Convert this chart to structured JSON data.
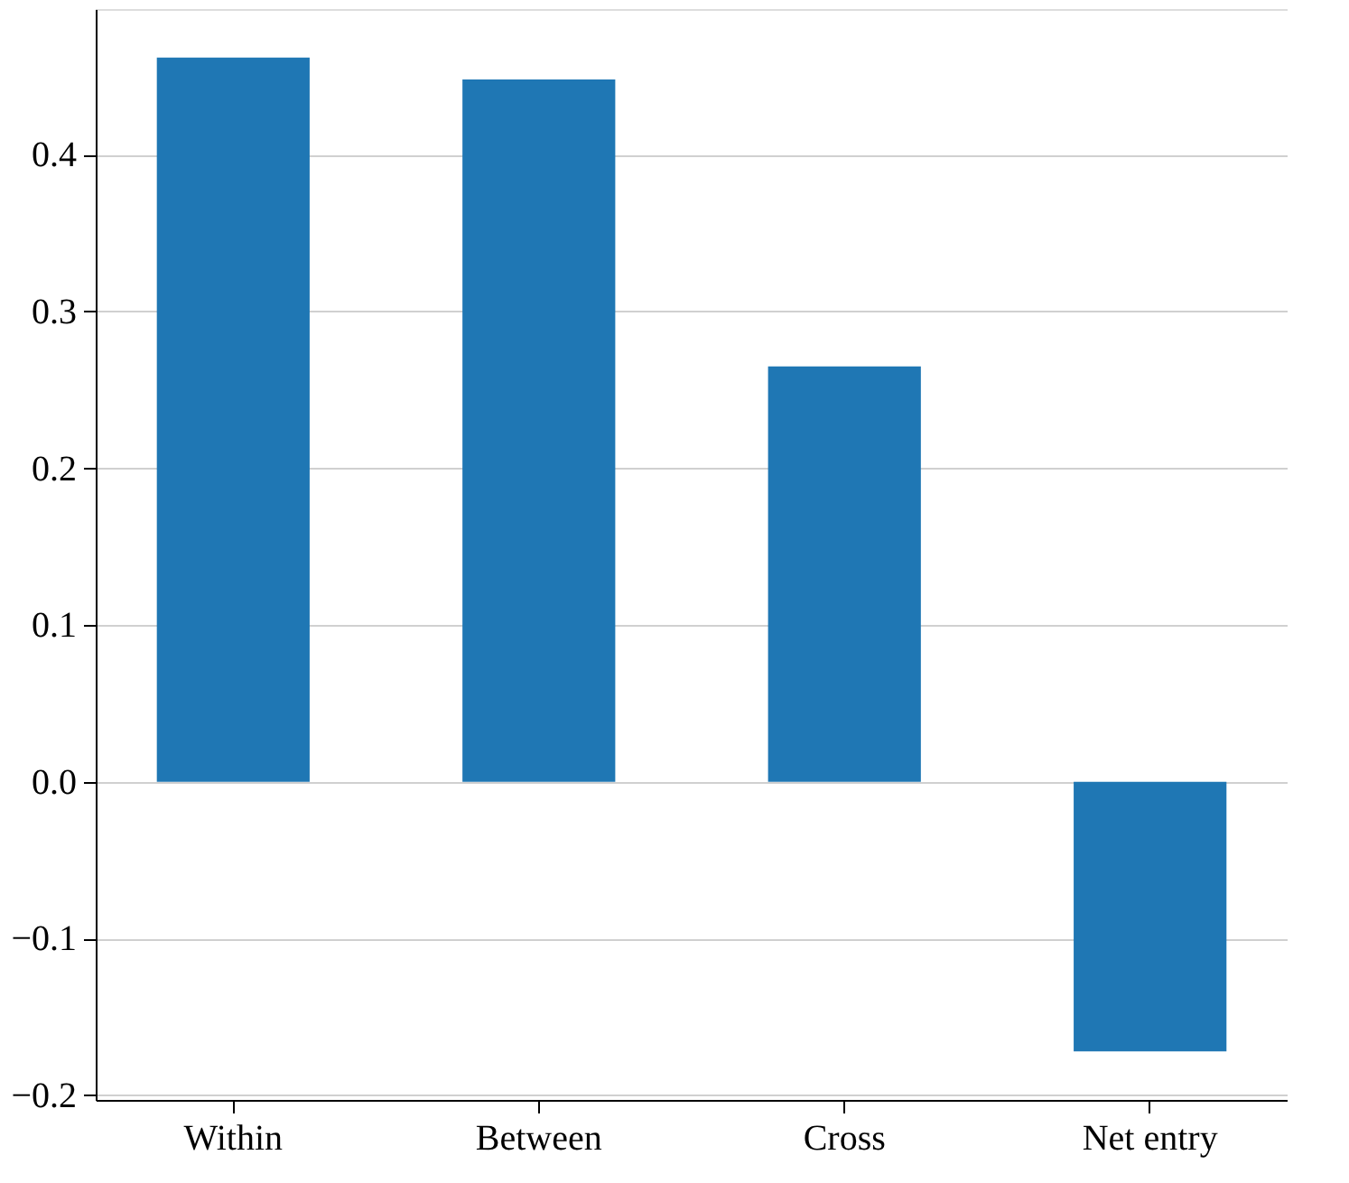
{
  "chart_data": {
    "type": "bar",
    "categories": [
      "Within",
      "Between",
      "Cross",
      "Net entry"
    ],
    "values": [
      0.462,
      0.448,
      0.265,
      -0.172
    ],
    "color": "#1f77b4",
    "ylim": [
      -0.203,
      0.493
    ],
    "yticks": [
      {
        "value": -0.2,
        "label": "−0.2"
      },
      {
        "value": -0.1,
        "label": "−0.1"
      },
      {
        "value": 0.0,
        "label": "0.0"
      },
      0.1,
      0.2,
      0.3,
      0.4
    ],
    "grid": "y"
  }
}
